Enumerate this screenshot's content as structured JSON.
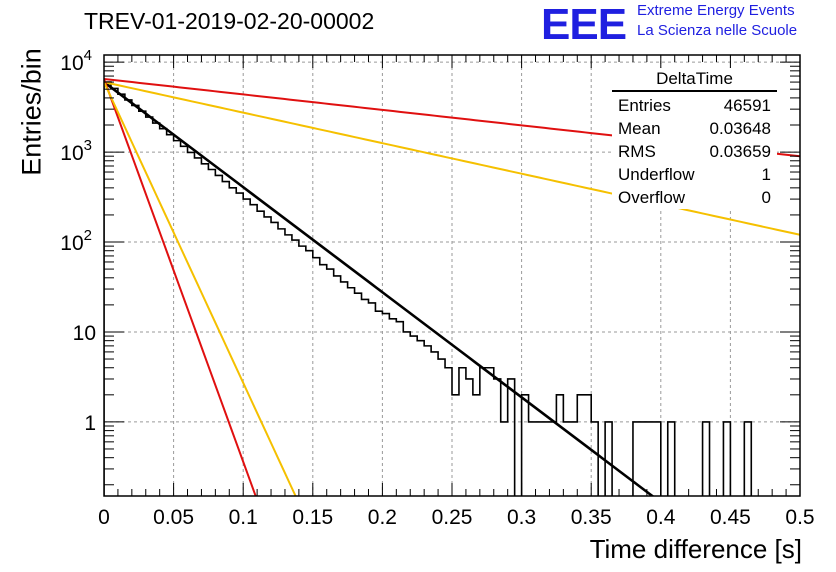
{
  "title": "TREV-01-2019-02-20-00002",
  "logo": {
    "mark": "EEE",
    "line1": "Extreme Energy Events",
    "line2": "La Scienza nelle Scuole",
    "color": "#1f1fe0"
  },
  "stats": {
    "header": "DeltaTime",
    "rows": [
      {
        "label": "Entries",
        "value": "46591"
      },
      {
        "label": "Mean",
        "value": "0.03648"
      },
      {
        "label": "RMS",
        "value": "0.03659"
      },
      {
        "label": "Underflow",
        "value": "1"
      },
      {
        "label": "Overflow",
        "value": "0"
      }
    ]
  },
  "chart_data": {
    "type": "line",
    "xlabel": "Time difference [s]",
    "ylabel": "Entries/bin",
    "xlim": [
      0,
      0.5
    ],
    "ylim": [
      0.15,
      12000
    ],
    "yscale": "log",
    "grid": true,
    "xticks": [
      "0",
      "0.05",
      "0.1",
      "0.15",
      "0.2",
      "0.25",
      "0.3",
      "0.35",
      "0.4",
      "0.45",
      "0.5"
    ],
    "yticks": [
      {
        "value": 10000,
        "base": "10",
        "exp": "4"
      },
      {
        "value": 1000,
        "base": "10",
        "exp": "3"
      },
      {
        "value": 100,
        "base": "10",
        "exp": "2"
      },
      {
        "value": 10,
        "base": "10",
        "exp": ""
      },
      {
        "value": 1,
        "base": "1",
        "exp": ""
      }
    ],
    "histogram": {
      "bin_width": 0.005,
      "color": "#000000",
      "counts": [
        6000,
        5100,
        4400,
        3800,
        3300,
        2850,
        2450,
        2100,
        1820,
        1560,
        1340,
        1160,
        990,
        860,
        740,
        640,
        550,
        470,
        400,
        350,
        300,
        260,
        220,
        190,
        165,
        140,
        120,
        105,
        90,
        80,
        67,
        56,
        50,
        42,
        36,
        31,
        27,
        23,
        21,
        17,
        16,
        14,
        13,
        10,
        9,
        8,
        7,
        6,
        5,
        4,
        2,
        4,
        3,
        2,
        4,
        4,
        3,
        1,
        3,
        0.1,
        2,
        1,
        1,
        1,
        1,
        2,
        1,
        1,
        2,
        2,
        1,
        0.1,
        1,
        0.1,
        0.1,
        0.1,
        1,
        1,
        1,
        1,
        0.1,
        1,
        0.1,
        0.1,
        0.1,
        0.1,
        1,
        0.1,
        0.1,
        1,
        0.1,
        0.1,
        1,
        0.1,
        0.1,
        0.1,
        0.1,
        0.1,
        0.1,
        0.1
      ]
    },
    "series": [
      {
        "color": "#000000",
        "y0": 6000,
        "slope": -26.9,
        "width": 2.6
      },
      {
        "color": "#e01010",
        "y0": 6500,
        "slope": -3.96,
        "width": 2
      },
      {
        "color": "#f5c000",
        "y0": 6000,
        "slope": -7.82,
        "width": 2
      },
      {
        "color": "#e01010",
        "y0": 6500,
        "slope": -98.0,
        "width": 2
      },
      {
        "color": "#f5c000",
        "y0": 6000,
        "slope": -77.0,
        "width": 2
      }
    ]
  }
}
